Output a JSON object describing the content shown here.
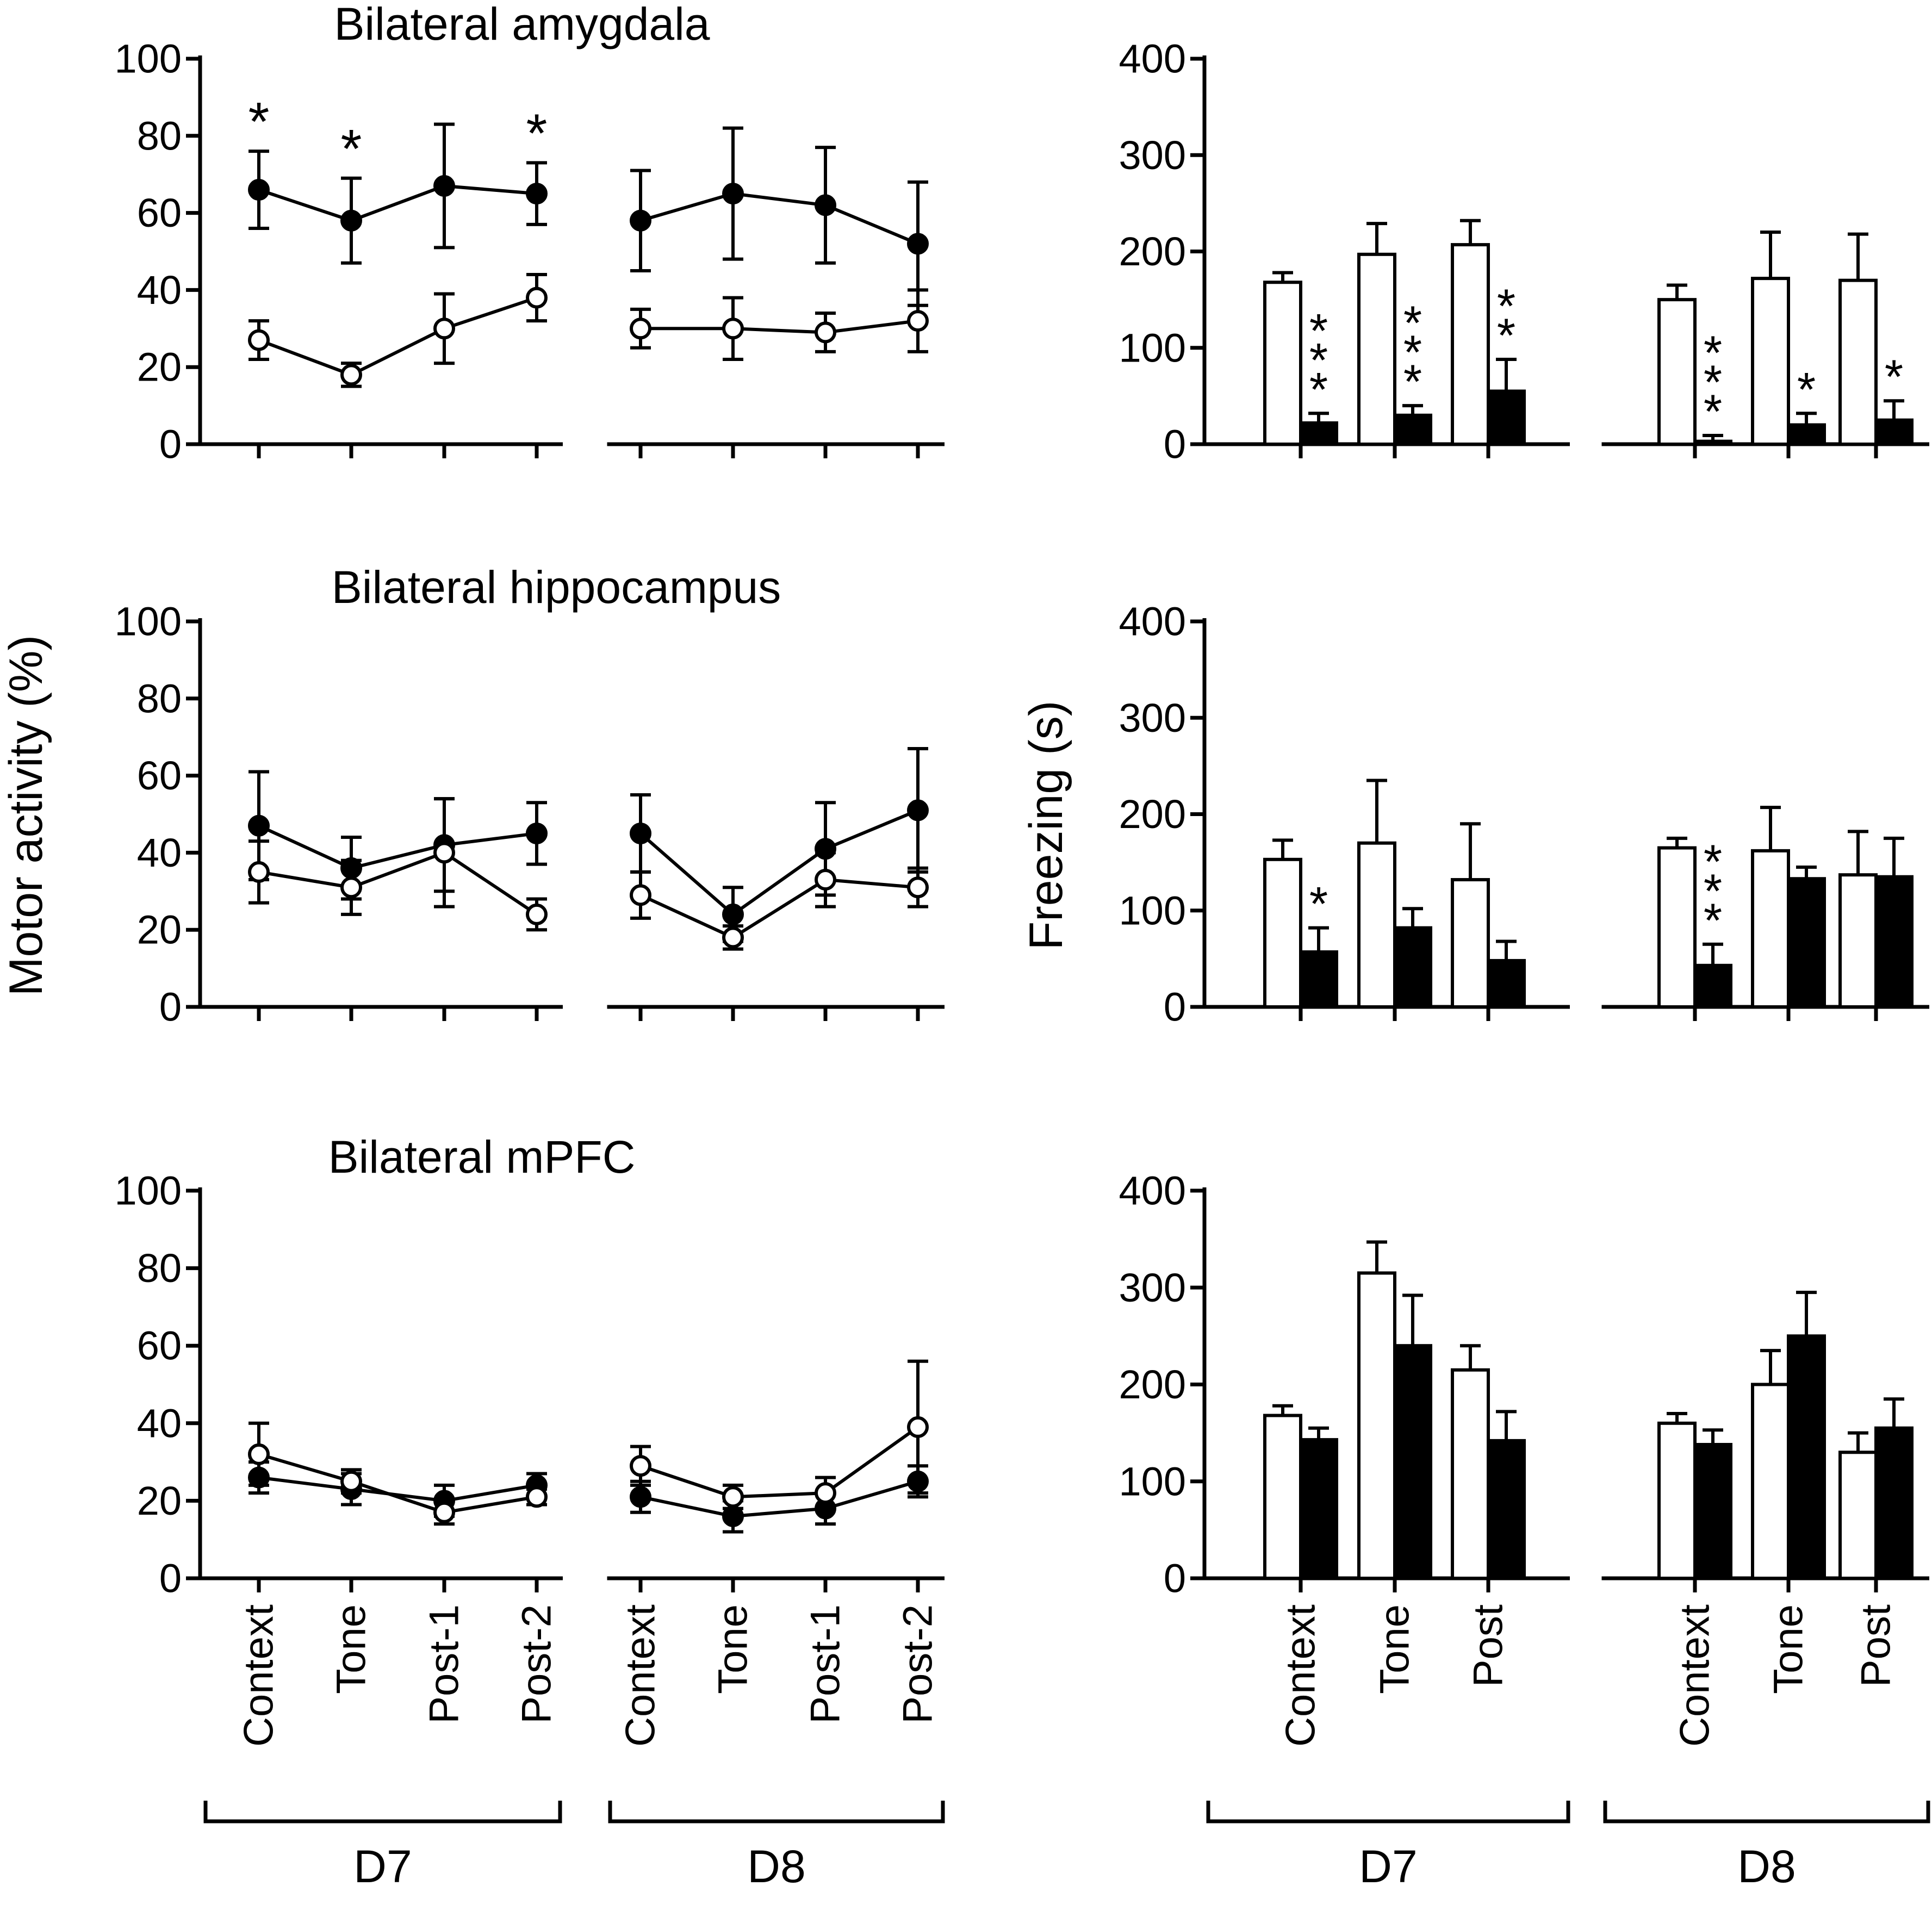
{
  "figure": {
    "left_axis_label": "Motor activity (%)",
    "right_axis_label": "Freezing (s)",
    "sessions": [
      "D7",
      "D8"
    ],
    "colors": {
      "foreground": "#000000",
      "background": "#ffffff"
    }
  },
  "chart_data": [
    {
      "id": "amygdala-motor",
      "type": "line",
      "side": "left",
      "row": 0,
      "title": "Bilateral amygdala",
      "ylabel": "Motor activity (%)",
      "ylim": [
        0,
        100
      ],
      "yticks": [
        0,
        20,
        40,
        60,
        80,
        100
      ],
      "categories": [
        "Context",
        "Tone",
        "Post-1",
        "Post-2"
      ],
      "series": [
        {
          "name": "filled-circles",
          "marker": "filled",
          "D7": {
            "values": [
              66,
              58,
              67,
              65
            ],
            "errors": [
              10,
              11,
              16,
              8
            ]
          },
          "D8": {
            "values": [
              58,
              65,
              62,
              52
            ],
            "errors": [
              13,
              17,
              15,
              16
            ]
          }
        },
        {
          "name": "open-circles",
          "marker": "open",
          "D7": {
            "values": [
              27,
              18,
              30,
              38
            ],
            "errors": [
              5,
              3,
              9,
              6
            ]
          },
          "D8": {
            "values": [
              30,
              30,
              29,
              32
            ],
            "errors": [
              5,
              8,
              5,
              8
            ]
          }
        }
      ],
      "annotations": [
        {
          "session": "D7",
          "index": 0,
          "text": "*"
        },
        {
          "session": "D7",
          "index": 1,
          "text": "*"
        },
        {
          "session": "D7",
          "index": 3,
          "text": "*"
        }
      ]
    },
    {
      "id": "hippocampus-motor",
      "type": "line",
      "side": "left",
      "row": 1,
      "title": "Bilateral hippocampus",
      "ylabel": "Motor activity (%)",
      "ylim": [
        0,
        100
      ],
      "yticks": [
        0,
        20,
        40,
        60,
        80,
        100
      ],
      "categories": [
        "Context",
        "Tone",
        "Post-1",
        "Post-2"
      ],
      "series": [
        {
          "name": "filled-circles",
          "marker": "filled",
          "D7": {
            "values": [
              47,
              36,
              42,
              45
            ],
            "errors": [
              14,
              8,
              12,
              8
            ]
          },
          "D8": {
            "values": [
              45,
              24,
              41,
              51
            ],
            "errors": [
              10,
              7,
              12,
              16
            ]
          }
        },
        {
          "name": "open-circles",
          "marker": "open",
          "D7": {
            "values": [
              35,
              31,
              40,
              24
            ],
            "errors": [
              8,
              7,
              14,
              4
            ]
          },
          "D8": {
            "values": [
              29,
              18,
              33,
              31
            ],
            "errors": [
              6,
              3,
              7,
              5
            ]
          }
        }
      ],
      "annotations": []
    },
    {
      "id": "mpfc-motor",
      "type": "line",
      "side": "left",
      "row": 2,
      "title": "Bilateral mPFC",
      "ylabel": "Motor activity (%)",
      "ylim": [
        0,
        100
      ],
      "yticks": [
        0,
        20,
        40,
        60,
        80,
        100
      ],
      "categories": [
        "Context",
        "Tone",
        "Post-1",
        "Post-2"
      ],
      "series": [
        {
          "name": "filled-circles",
          "marker": "filled",
          "D7": {
            "values": [
              26,
              23,
              20,
              24
            ],
            "errors": [
              4,
              4,
              4,
              3
            ]
          },
          "D8": {
            "values": [
              21,
              16,
              18,
              25
            ],
            "errors": [
              4,
              4,
              4,
              4
            ]
          }
        },
        {
          "name": "open-circles",
          "marker": "open",
          "D7": {
            "values": [
              32,
              25,
              17,
              21
            ],
            "errors": [
              8,
              3,
              3,
              2
            ]
          },
          "D8": {
            "values": [
              29,
              21,
              22,
              39
            ],
            "errors": [
              5,
              3,
              4,
              17
            ]
          }
        }
      ],
      "annotations": []
    },
    {
      "id": "amygdala-freezing",
      "type": "bar",
      "side": "right",
      "row": 0,
      "title": "",
      "ylabel": "Freezing (s)",
      "ylim": [
        0,
        400
      ],
      "yticks": [
        0,
        100,
        200,
        300,
        400
      ],
      "categories": [
        "Context",
        "Tone",
        "Post"
      ],
      "series": [
        {
          "name": "white-bars",
          "fill": "white",
          "D7": {
            "values": [
              168,
              197,
              207
            ],
            "errors": [
              10,
              32,
              25
            ]
          },
          "D8": {
            "values": [
              150,
              172,
              170
            ],
            "errors": [
              15,
              48,
              48
            ]
          }
        },
        {
          "name": "black-bars",
          "fill": "black",
          "D7": {
            "values": [
              22,
              30,
              55
            ],
            "errors": [
              10,
              10,
              33
            ]
          },
          "D8": {
            "values": [
              3,
              20,
              25
            ],
            "errors": [
              6,
              12,
              20
            ]
          }
        }
      ],
      "annotations": [
        {
          "session": "D7",
          "index": 0,
          "text": "***"
        },
        {
          "session": "D7",
          "index": 1,
          "text": "***"
        },
        {
          "session": "D7",
          "index": 2,
          "text": "**"
        },
        {
          "session": "D8",
          "index": 0,
          "text": "***"
        },
        {
          "session": "D8",
          "index": 1,
          "text": "*"
        },
        {
          "session": "D8",
          "index": 2,
          "text": "*"
        }
      ]
    },
    {
      "id": "hippocampus-freezing",
      "type": "bar",
      "side": "right",
      "row": 1,
      "title": "",
      "ylabel": "Freezing (s)",
      "ylim": [
        0,
        400
      ],
      "yticks": [
        0,
        100,
        200,
        300,
        400
      ],
      "categories": [
        "Context",
        "Tone",
        "Post"
      ],
      "series": [
        {
          "name": "white-bars",
          "fill": "white",
          "D7": {
            "values": [
              153,
              170,
              132
            ],
            "errors": [
              20,
              65,
              58
            ]
          },
          "D8": {
            "values": [
              165,
              162,
              137
            ],
            "errors": [
              10,
              45,
              45
            ]
          }
        },
        {
          "name": "black-bars",
          "fill": "black",
          "D7": {
            "values": [
              57,
              82,
              48
            ],
            "errors": [
              25,
              20,
              20
            ]
          },
          "D8": {
            "values": [
              43,
              133,
              135
            ],
            "errors": [
              22,
              12,
              40
            ]
          }
        }
      ],
      "annotations": [
        {
          "session": "D7",
          "index": 0,
          "text": "*"
        },
        {
          "session": "D8",
          "index": 0,
          "text": "***"
        }
      ]
    },
    {
      "id": "mpfc-freezing",
      "type": "bar",
      "side": "right",
      "row": 2,
      "title": "",
      "ylabel": "Freezing (s)",
      "ylim": [
        0,
        400
      ],
      "yticks": [
        0,
        100,
        200,
        300,
        400
      ],
      "categories": [
        "Context",
        "Tone",
        "Post"
      ],
      "series": [
        {
          "name": "white-bars",
          "fill": "white",
          "D7": {
            "values": [
              168,
              315,
              215
            ],
            "errors": [
              10,
              32,
              25
            ]
          },
          "D8": {
            "values": [
              160,
              200,
              130
            ],
            "errors": [
              10,
              35,
              20
            ]
          }
        },
        {
          "name": "black-bars",
          "fill": "black",
          "D7": {
            "values": [
              143,
              240,
              142
            ],
            "errors": [
              12,
              52,
              30
            ]
          },
          "D8": {
            "values": [
              138,
              250,
              155
            ],
            "errors": [
              15,
              45,
              30
            ]
          }
        }
      ],
      "annotations": []
    }
  ]
}
